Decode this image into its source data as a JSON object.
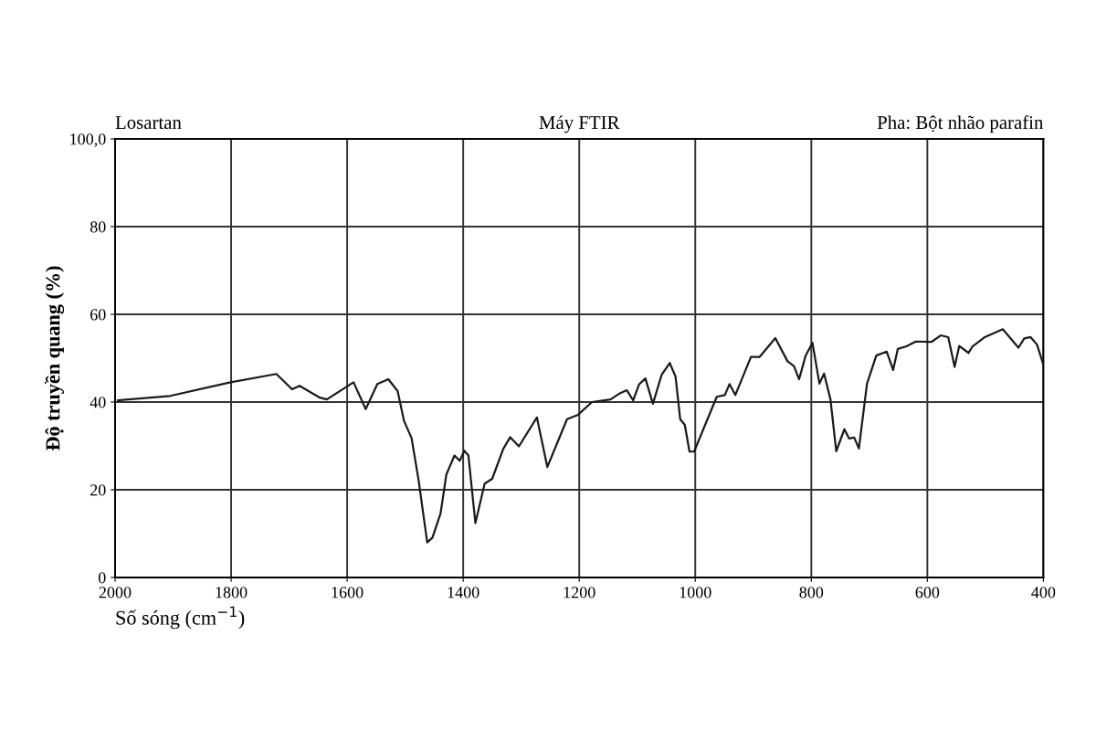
{
  "chart_data": {
    "type": "line",
    "title": "Máy FTIR",
    "annotations": [
      "Losartan",
      "Pha: Bột nhão parafin"
    ],
    "xlabel": "Số sóng (cm$^{−1}$)",
    "ylabel": "Độ truyền quang (%)",
    "xlim": [
      2000,
      400
    ],
    "ylim": [
      0,
      100
    ],
    "xticks": [
      2000,
      1800,
      1600,
      1400,
      1200,
      1000,
      800,
      600,
      400
    ],
    "yticks": [
      0,
      20,
      40,
      60,
      80,
      {
        "value": 100,
        "label": "100,0"
      }
    ],
    "grid": true,
    "line_style": "solid",
    "marker": "none",
    "series": [
      {
        "color": "#1a1a1a",
        "x": [
          1995,
          1905,
          1801,
          1722,
          1695,
          1682,
          1647,
          1635,
          1589,
          1568,
          1548,
          1529,
          1513,
          1502,
          1489,
          1477,
          1462,
          1453,
          1439,
          1429,
          1415,
          1406,
          1398,
          1391,
          1379,
          1363,
          1350,
          1331,
          1319,
          1304,
          1273,
          1255,
          1221,
          1202,
          1178,
          1146,
          1130,
          1118,
          1107,
          1097,
          1086,
          1073,
          1058,
          1044,
          1034,
          1026,
          1018,
          1010,
          1002,
          983,
          963,
          949,
          941,
          931,
          904,
          889,
          862,
          841,
          830,
          821,
          810,
          798,
          786,
          778,
          767,
          757,
          743,
          735,
          726,
          718,
          704,
          688,
          670,
          659,
          651,
          636,
          620,
          593,
          577,
          564,
          553,
          545,
          529,
          522,
          501,
          470,
          443,
          433,
          422,
          411,
          400
        ],
        "values": [
          40.4,
          41.4,
          44.5,
          46.4,
          42.9,
          43.7,
          41,
          40.6,
          44.5,
          38.4,
          44.1,
          45.2,
          42.5,
          35.7,
          31.8,
          22.3,
          8,
          9.1,
          14.6,
          23.5,
          27.8,
          26.6,
          28.9,
          27.8,
          12.4,
          21.4,
          22.5,
          29.3,
          32,
          29.9,
          36.5,
          25.2,
          36.1,
          37.1,
          40,
          40.6,
          42,
          42.7,
          40.4,
          44,
          45.4,
          39.6,
          46.2,
          48.9,
          45.8,
          36.1,
          34.8,
          28.7,
          28.7,
          34.8,
          41.2,
          41.6,
          44.1,
          41.6,
          50.3,
          50.3,
          54.6,
          49.3,
          48.2,
          45.2,
          50.5,
          53.5,
          44.2,
          46.5,
          40.6,
          28.8,
          33.8,
          31.7,
          31.9,
          29.4,
          44.2,
          50.6,
          51.5,
          47.3,
          52.1,
          52.7,
          53.8,
          53.7,
          55.2,
          54.8,
          48,
          52.8,
          51.2,
          52.7,
          54.8,
          56.6,
          52.4,
          54.5,
          54.8,
          53.1,
          48.5
        ]
      }
    ]
  }
}
